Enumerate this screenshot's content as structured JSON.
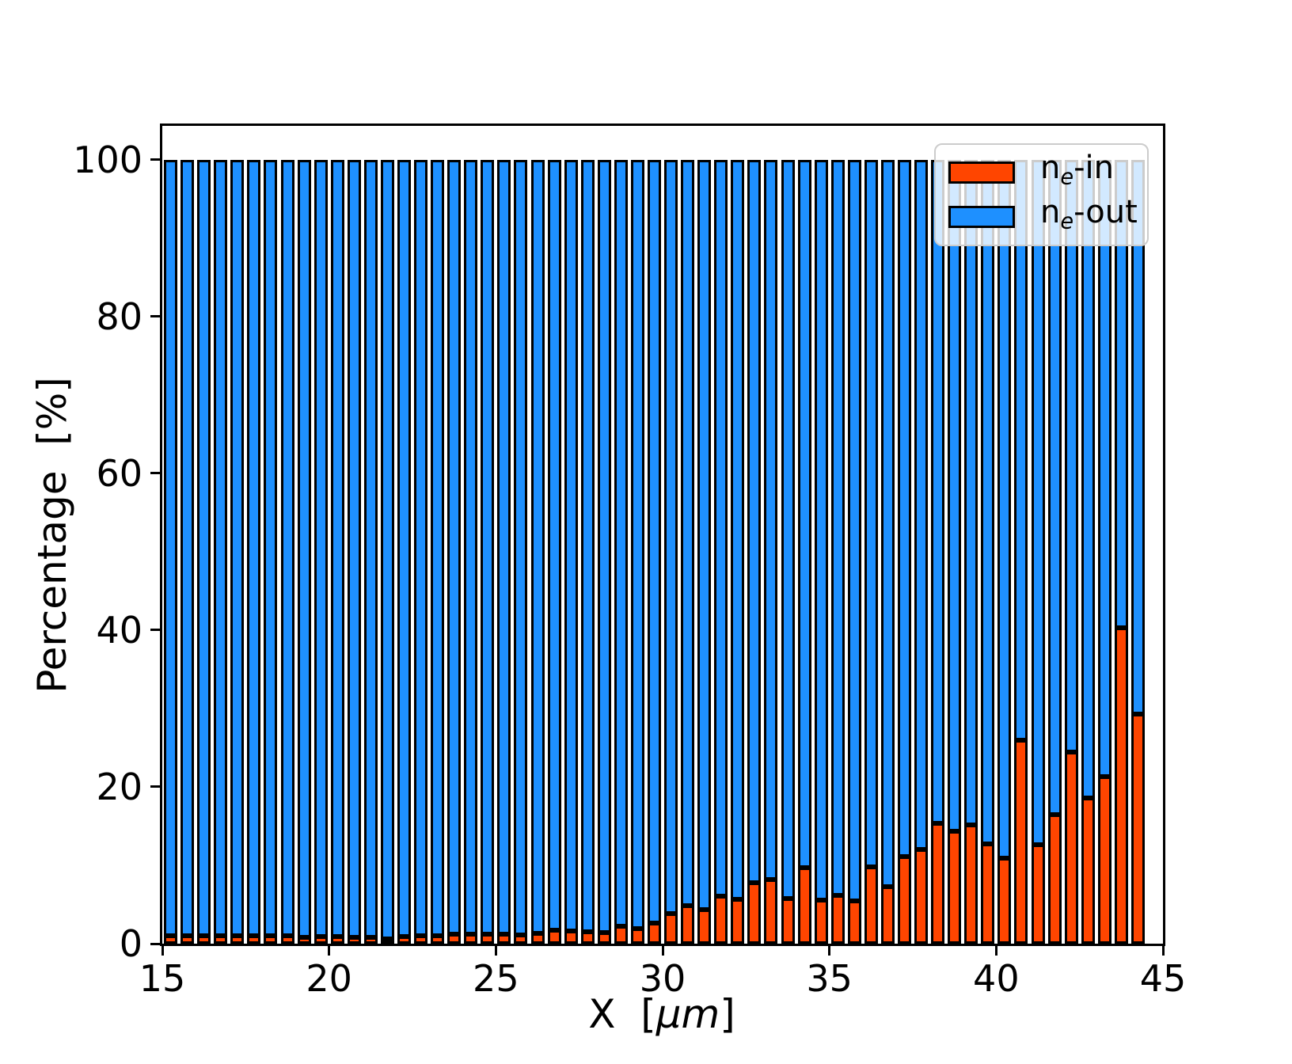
{
  "figure": {
    "background": "#ffffff"
  },
  "chart_data": {
    "type": "bar",
    "stacked": true,
    "orientation": "vertical",
    "title": "",
    "xlabel": {
      "prefix": "X  [",
      "unit_italic": "μm",
      "suffix": "]"
    },
    "ylabel": "Percentage  [%]",
    "xlim": [
      15,
      45
    ],
    "ylim": [
      0,
      104.3
    ],
    "xticks": [
      15,
      20,
      25,
      30,
      35,
      40,
      45
    ],
    "yticks": [
      0,
      20,
      40,
      60,
      80,
      100
    ],
    "grid": false,
    "bar_width_um": 0.4,
    "bar_spacing_um": 0.5,
    "edge_color": "#000000",
    "legend": {
      "location": "upper-right",
      "background": "rgba(255,255,255,0.8)",
      "border_color": "#cccccc",
      "items": [
        {
          "base": "n",
          "sub": "e",
          "rest": "-in",
          "color": "#ff4500"
        },
        {
          "base": "n",
          "sub": "e",
          "rest": "-out",
          "color": "#1e90ff"
        }
      ]
    },
    "x": [
      15.25,
      15.75,
      16.25,
      16.75,
      17.25,
      17.75,
      18.25,
      18.75,
      19.25,
      19.75,
      20.25,
      20.75,
      21.25,
      21.75,
      22.25,
      22.75,
      23.25,
      23.75,
      24.25,
      24.75,
      25.25,
      25.75,
      26.25,
      26.75,
      27.25,
      27.75,
      28.25,
      28.75,
      29.25,
      29.75,
      30.25,
      30.75,
      31.25,
      31.75,
      32.25,
      32.75,
      33.25,
      33.75,
      34.25,
      34.75,
      35.25,
      35.75,
      36.25,
      36.75,
      37.25,
      37.75,
      38.25,
      38.75,
      39.25,
      39.75,
      40.25,
      40.75,
      41.25,
      41.75,
      42.25,
      42.75,
      43.25,
      43.75,
      44.25
    ],
    "series": [
      {
        "name": "ne-in",
        "color": "#ff4500",
        "values": [
          1.0,
          1.0,
          1.0,
          1.0,
          1.0,
          1.0,
          1.0,
          1.0,
          0.8,
          0.9,
          0.9,
          0.85,
          0.85,
          0.6,
          0.9,
          1.0,
          1.0,
          1.2,
          1.2,
          1.25,
          1.2,
          1.1,
          1.3,
          1.7,
          1.6,
          1.5,
          1.4,
          2.2,
          1.9,
          2.6,
          3.8,
          4.8,
          4.3,
          6.1,
          5.7,
          7.8,
          8.2,
          5.8,
          9.7,
          5.6,
          6.2,
          5.5,
          9.8,
          7.3,
          11.1,
          12.0,
          15.3,
          14.3,
          15.1,
          12.7,
          10.9,
          25.9,
          12.6,
          16.5,
          24.4,
          18.6,
          21.3,
          40.3,
          29.3
        ]
      },
      {
        "name": "ne-out",
        "color": "#1e90ff",
        "values": [
          99.0,
          99.0,
          99.0,
          99.0,
          99.0,
          99.0,
          99.0,
          99.0,
          99.2,
          99.1,
          99.1,
          99.15,
          99.15,
          99.4,
          99.1,
          99.0,
          99.0,
          98.8,
          98.8,
          98.75,
          98.8,
          98.9,
          98.7,
          98.3,
          98.4,
          98.5,
          98.6,
          97.8,
          98.1,
          97.4,
          96.2,
          95.2,
          95.7,
          93.9,
          94.3,
          92.2,
          91.8,
          94.2,
          90.3,
          94.4,
          93.8,
          94.5,
          90.2,
          92.7,
          88.9,
          88.0,
          84.7,
          85.7,
          84.9,
          87.3,
          89.1,
          74.1,
          87.4,
          83.5,
          75.6,
          81.4,
          78.7,
          59.7,
          70.7
        ]
      }
    ]
  }
}
